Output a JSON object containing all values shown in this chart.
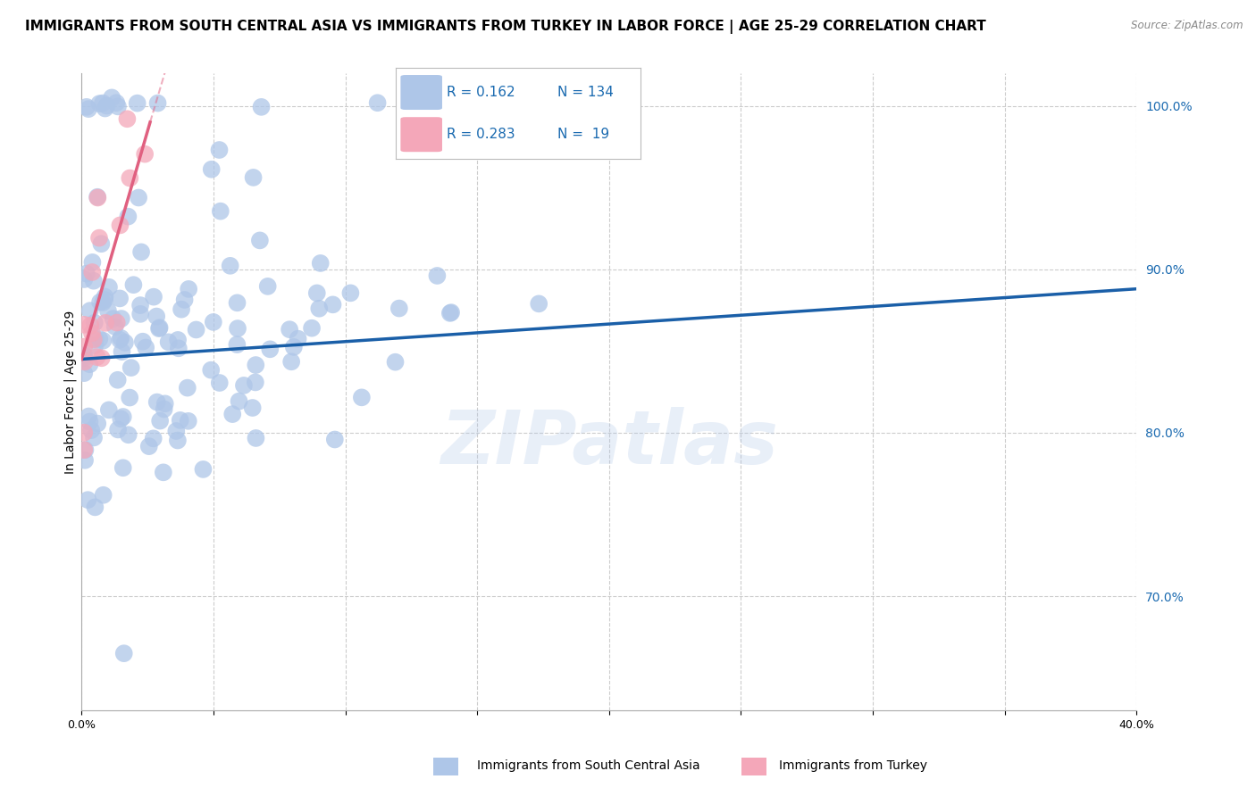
{
  "title": "IMMIGRANTS FROM SOUTH CENTRAL ASIA VS IMMIGRANTS FROM TURKEY IN LABOR FORCE | AGE 25-29 CORRELATION CHART",
  "source": "Source: ZipAtlas.com",
  "ylabel": "In Labor Force | Age 25-29",
  "xlim": [
    0.0,
    0.4
  ],
  "ylim": [
    0.63,
    1.02
  ],
  "xticks": [
    0.0,
    0.05,
    0.1,
    0.15,
    0.2,
    0.25,
    0.3,
    0.35,
    0.4
  ],
  "xticklabels": [
    "0.0%",
    "",
    "",
    "",
    "",
    "",
    "",
    "",
    "40.0%"
  ],
  "yticks_right": [
    0.7,
    0.8,
    0.9,
    1.0
  ],
  "ytick_labels_right": [
    "70.0%",
    "80.0%",
    "90.0%",
    "100.0%"
  ],
  "blue_R": 0.162,
  "blue_N": 134,
  "pink_R": 0.283,
  "pink_N": 19,
  "blue_color": "#aec6e8",
  "pink_color": "#f4a7b9",
  "blue_line_color": "#1a5fa8",
  "pink_line_color": "#e06080",
  "legend_text_color": "#1a6ab0",
  "watermark": "ZIPatlas",
  "blue_line_x0": 0.0,
  "blue_line_x1": 0.4,
  "blue_line_y0": 0.845,
  "blue_line_y1": 0.888,
  "pink_line_x0": 0.0,
  "pink_line_x1": 0.026,
  "pink_line_y0": 0.845,
  "pink_line_y1": 0.99,
  "grid_color": "#cccccc",
  "background_color": "#ffffff",
  "title_fontsize": 11,
  "axis_label_fontsize": 10,
  "tick_fontsize": 9,
  "legend_fontsize": 11
}
